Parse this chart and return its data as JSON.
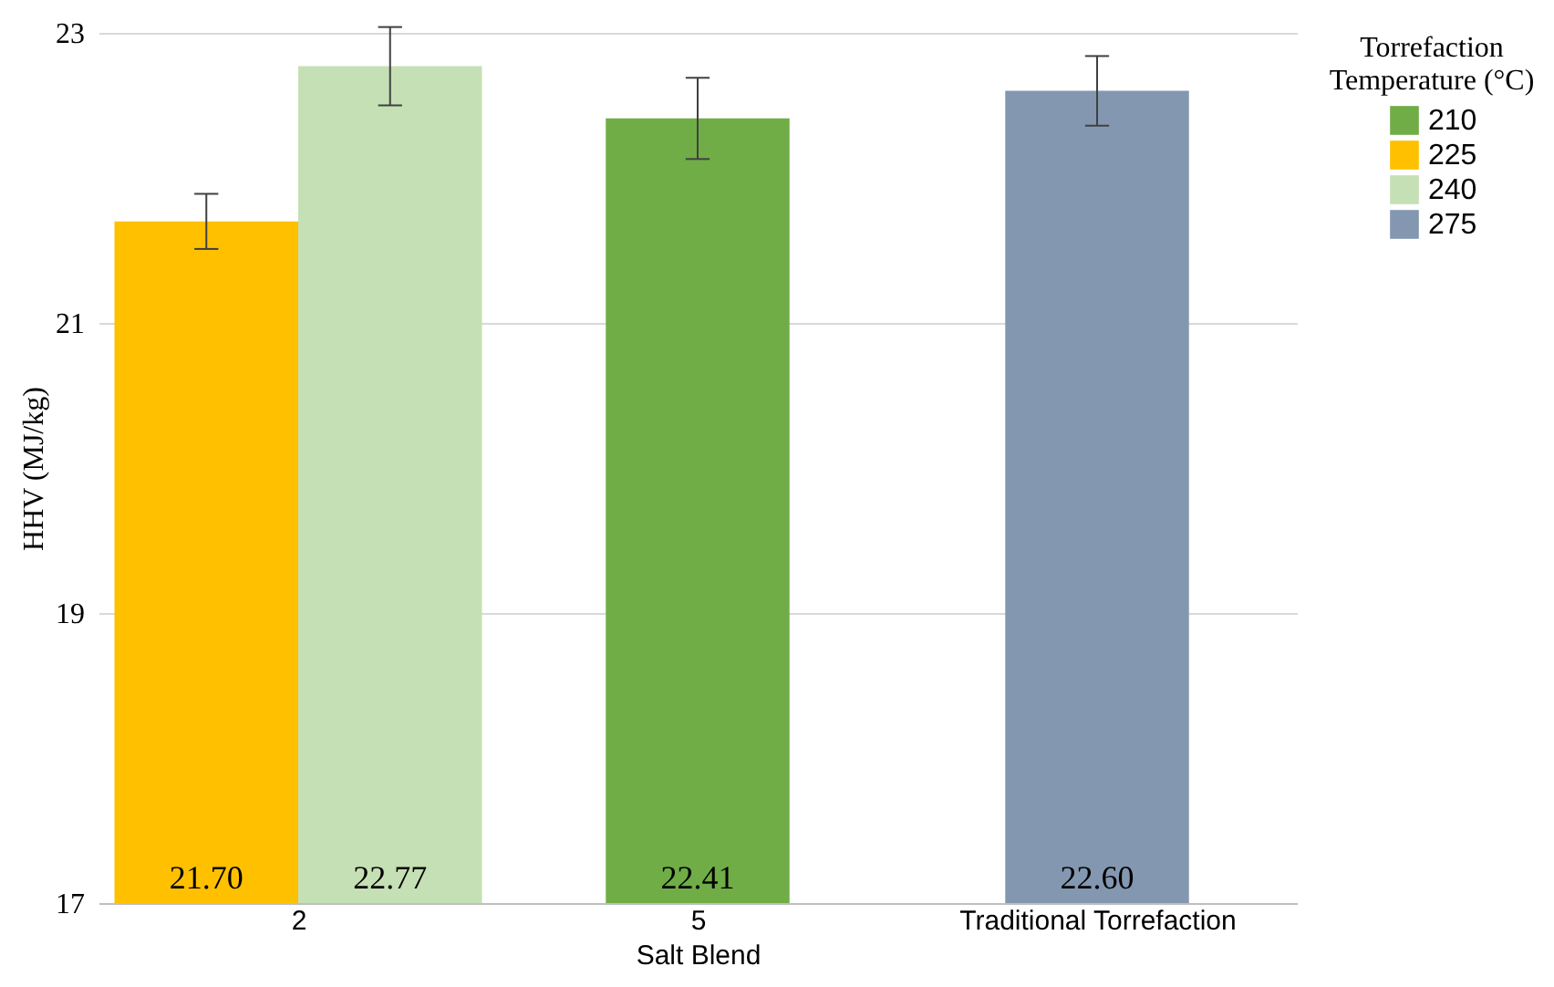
{
  "chart_data": {
    "type": "bar",
    "categories": [
      "2",
      "5",
      "Traditional Torrefaction"
    ],
    "xlabel": "Salt Blend",
    "ylabel": "HHV (MJ/kg)",
    "legend_title": "Torrefaction Temperature (°C)",
    "series": [
      {
        "name": "210",
        "color": "#70ad47",
        "values": [
          null,
          22.41,
          null
        ],
        "value_labels": [
          null,
          "22.41",
          null
        ],
        "errors": [
          null,
          0.28,
          null
        ]
      },
      {
        "name": "225",
        "color": "#ffc000",
        "values": [
          21.7,
          null,
          null
        ],
        "value_labels": [
          "21.70",
          null,
          null
        ],
        "errors": [
          0.19,
          null,
          null
        ]
      },
      {
        "name": "240",
        "color": "#c5e0b4",
        "values": [
          22.77,
          null,
          null
        ],
        "value_labels": [
          "22.77",
          null,
          null
        ],
        "errors": [
          0.27,
          null,
          null
        ]
      },
      {
        "name": "275",
        "color": "#8497b0",
        "values": [
          null,
          null,
          22.6
        ],
        "value_labels": [
          null,
          null,
          "22.60"
        ],
        "errors": [
          null,
          null,
          0.24
        ]
      }
    ],
    "ylim": [
      17,
      23
    ],
    "yticks": [
      17,
      19,
      21,
      23
    ],
    "grid": "y",
    "legend": "right"
  }
}
